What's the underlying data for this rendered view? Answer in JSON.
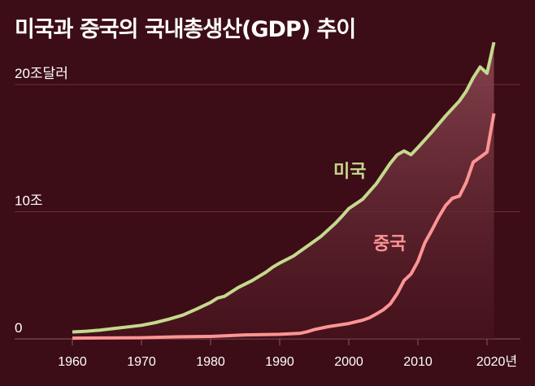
{
  "title": "미국과 중국의 국내총생산(GDP) 추이",
  "chart_data": {
    "type": "line",
    "title": "미국과 중국의 국내총생산(GDP) 추이",
    "xlabel": "",
    "ylabel": "",
    "x_ticks": [
      "1960",
      "1970",
      "1980",
      "1990",
      "2000",
      "2010",
      "2020년"
    ],
    "y_ticks": [
      {
        "value": 0,
        "label": "0"
      },
      {
        "value": 10,
        "label": "10조"
      },
      {
        "value": 20,
        "label": "20조달러"
      }
    ],
    "xlim": [
      1956,
      2025
    ],
    "ylim": [
      0,
      23.5
    ],
    "grid": true,
    "colors": {
      "background": "#3c0d16",
      "us": "#c5d98d",
      "china": "#ff9494",
      "fill": "#7a3640"
    },
    "series": [
      {
        "name": "미국",
        "years": [
          1960,
          1962,
          1964,
          1966,
          1968,
          1970,
          1972,
          1974,
          1976,
          1978,
          1980,
          1981,
          1982,
          1984,
          1986,
          1988,
          1989,
          1990,
          1992,
          1994,
          1996,
          1998,
          1999,
          2000,
          2002,
          2004,
          2006,
          2007,
          2008,
          2009,
          2010,
          2012,
          2014,
          2016,
          2017,
          2018,
          2019,
          2020,
          2021
        ],
        "values": [
          0.54,
          0.6,
          0.69,
          0.81,
          0.94,
          1.07,
          1.28,
          1.55,
          1.87,
          2.35,
          2.86,
          3.21,
          3.34,
          4.04,
          4.58,
          5.24,
          5.64,
          5.96,
          6.52,
          7.29,
          8.07,
          9.06,
          9.63,
          10.25,
          10.98,
          12.21,
          13.81,
          14.47,
          14.77,
          14.48,
          15.05,
          16.25,
          17.53,
          18.7,
          19.48,
          20.53,
          21.38,
          20.89,
          23.32
        ]
      },
      {
        "name": "중국",
        "years": [
          1960,
          1965,
          1970,
          1975,
          1980,
          1985,
          1990,
          1993,
          1994,
          1995,
          1997,
          2000,
          2002,
          2003,
          2004,
          2005,
          2006,
          2007,
          2008,
          2009,
          2010,
          2011,
          2012,
          2013,
          2014,
          2015,
          2016,
          2017,
          2018,
          2019,
          2020,
          2021
        ],
        "values": [
          0.06,
          0.07,
          0.09,
          0.16,
          0.19,
          0.31,
          0.36,
          0.44,
          0.56,
          0.73,
          0.96,
          1.21,
          1.47,
          1.66,
          1.96,
          2.29,
          2.75,
          3.55,
          4.59,
          5.1,
          6.09,
          7.55,
          8.53,
          9.57,
          10.48,
          11.06,
          11.23,
          12.31,
          13.89,
          14.28,
          14.69,
          17.73
        ]
      }
    ]
  }
}
